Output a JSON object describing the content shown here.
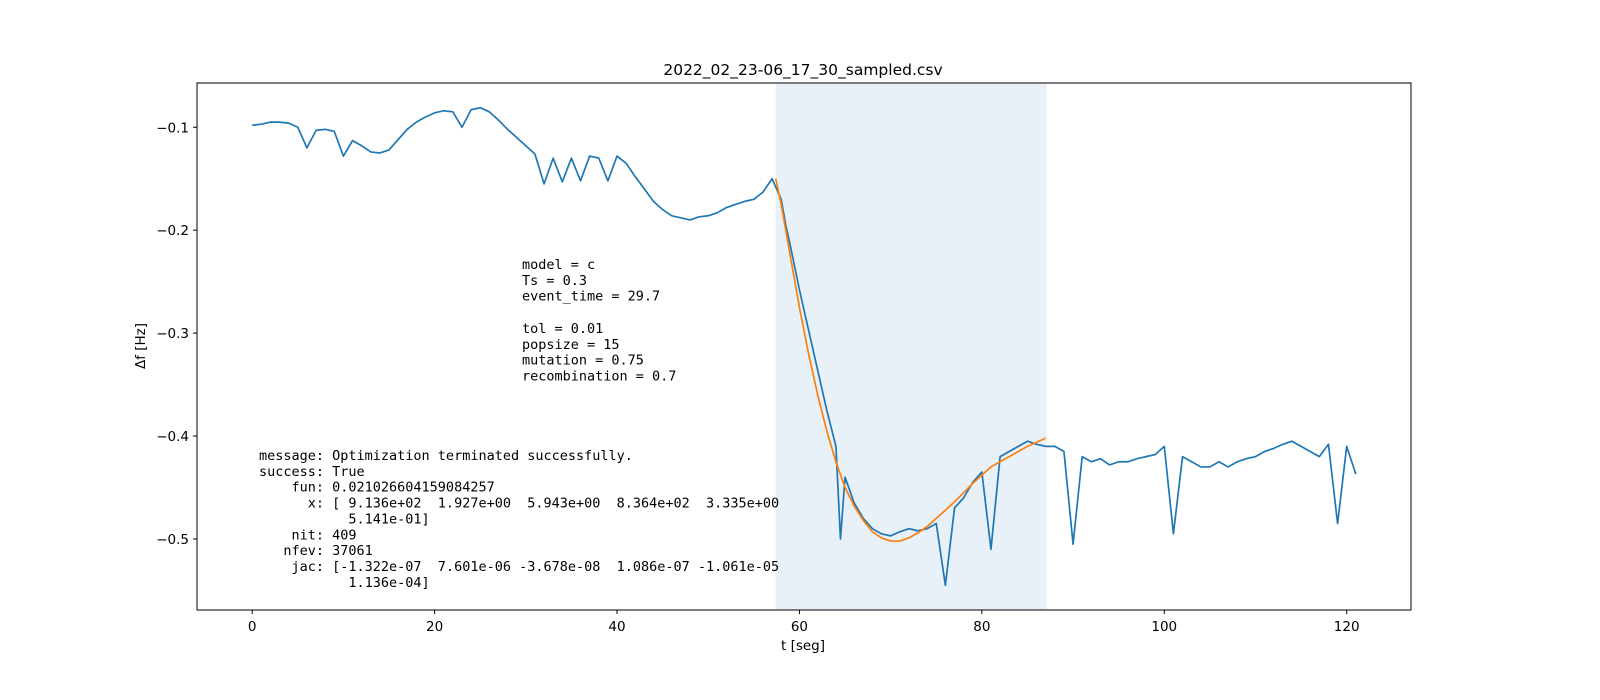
{
  "chart_data": {
    "type": "line",
    "title": "2022_02_23-06_17_30_sampled.csv",
    "xlabel": "t [seg]",
    "ylabel": "Δf [Hz]",
    "xlim": [
      -6.05,
      127.05
    ],
    "ylim": [
      -0.569,
      -0.057
    ],
    "xticks": [
      0,
      20,
      40,
      60,
      80,
      100,
      120
    ],
    "yticks": [
      {
        "value": -0.5,
        "label": "−0.5"
      },
      {
        "value": -0.4,
        "label": "−0.4"
      },
      {
        "value": -0.3,
        "label": "−0.3"
      },
      {
        "value": -0.2,
        "label": "−0.2"
      },
      {
        "value": -0.1,
        "label": "−0.1"
      }
    ],
    "span": [
      57.4,
      87.1
    ],
    "span_color": "#e8f0f8",
    "series": [
      {
        "color": "#1f77b4",
        "x": [
          0,
          1,
          2,
          3,
          4,
          5,
          6,
          7,
          8,
          9,
          10,
          11,
          12,
          13,
          14,
          15,
          16,
          17,
          18,
          19,
          20,
          21,
          22,
          23,
          24,
          25,
          26,
          27,
          28,
          29,
          30,
          31,
          32,
          33,
          34,
          35,
          36,
          37,
          38,
          39,
          40,
          41,
          42,
          43,
          44,
          45,
          46,
          47,
          48,
          49,
          50,
          51,
          52,
          53,
          54,
          55,
          56,
          57,
          58,
          58.5,
          59,
          60,
          61,
          62,
          63,
          64,
          64.5,
          65,
          66,
          67,
          68,
          69,
          70,
          71,
          72,
          73,
          74,
          75,
          76,
          77,
          78,
          79,
          80,
          81,
          82,
          83,
          84,
          85,
          86,
          87,
          88,
          89,
          90,
          91,
          92,
          93,
          94,
          95,
          96,
          97,
          98,
          99,
          100,
          101,
          102,
          103,
          104,
          105,
          106,
          107,
          108,
          109,
          110,
          111,
          112,
          113,
          114,
          115,
          116,
          117,
          118,
          119,
          120,
          121
        ],
        "values": [
          -0.098,
          -0.097,
          -0.095,
          -0.095,
          -0.096,
          -0.1,
          -0.12,
          -0.103,
          -0.102,
          -0.104,
          -0.128,
          -0.113,
          -0.118,
          -0.124,
          -0.125,
          -0.122,
          -0.112,
          -0.102,
          -0.095,
          -0.09,
          -0.086,
          -0.084,
          -0.085,
          -0.1,
          -0.083,
          -0.081,
          -0.085,
          -0.093,
          -0.102,
          -0.11,
          -0.118,
          -0.126,
          -0.155,
          -0.13,
          -0.153,
          -0.13,
          -0.152,
          -0.128,
          -0.13,
          -0.152,
          -0.128,
          -0.135,
          -0.148,
          -0.16,
          -0.172,
          -0.18,
          -0.186,
          -0.188,
          -0.19,
          -0.187,
          -0.186,
          -0.183,
          -0.178,
          -0.175,
          -0.172,
          -0.17,
          -0.163,
          -0.15,
          -0.17,
          -0.195,
          -0.215,
          -0.258,
          -0.297,
          -0.336,
          -0.375,
          -0.41,
          -0.5,
          -0.44,
          -0.465,
          -0.48,
          -0.49,
          -0.495,
          -0.497,
          -0.493,
          -0.49,
          -0.492,
          -0.49,
          -0.485,
          -0.545,
          -0.47,
          -0.46,
          -0.445,
          -0.435,
          -0.51,
          -0.42,
          -0.415,
          -0.41,
          -0.405,
          -0.408,
          -0.41,
          -0.41,
          -0.415,
          -0.505,
          -0.42,
          -0.425,
          -0.422,
          -0.428,
          -0.425,
          -0.425,
          -0.422,
          -0.42,
          -0.418,
          -0.41,
          -0.495,
          -0.42,
          -0.425,
          -0.43,
          -0.43,
          -0.425,
          -0.43,
          -0.425,
          -0.422,
          -0.42,
          -0.415,
          -0.412,
          -0.408,
          -0.405,
          -0.41,
          -0.415,
          -0.42,
          -0.408,
          -0.485,
          -0.41,
          -0.437
        ]
      },
      {
        "color": "#ff7f0e",
        "x": [
          57.4,
          58,
          59,
          60,
          61,
          62,
          63,
          64,
          65,
          66,
          67,
          68,
          69,
          70,
          71,
          72,
          73,
          74,
          75,
          76,
          77,
          78,
          79,
          80,
          81,
          82,
          83,
          84,
          85,
          86,
          87
        ],
        "values": [
          -0.15,
          -0.175,
          -0.225,
          -0.275,
          -0.32,
          -0.36,
          -0.395,
          -0.425,
          -0.45,
          -0.468,
          -0.482,
          -0.493,
          -0.499,
          -0.502,
          -0.502,
          -0.499,
          -0.494,
          -0.488,
          -0.48,
          -0.472,
          -0.464,
          -0.455,
          -0.446,
          -0.438,
          -0.43,
          -0.425,
          -0.42,
          -0.415,
          -0.41,
          -0.406,
          -0.402
        ]
      }
    ],
    "annotations": [
      {
        "lines": [
          "model = c",
          "Ts = 0.3",
          "event_time = 29.7"
        ]
      },
      {
        "lines": [
          "tol = 0.01",
          "popsize = 15",
          "mutation = 0.75",
          "recombination = 0.7"
        ]
      },
      {
        "lines": [
          "message: Optimization terminated successfully.",
          "success: True",
          "    fun: 0.021026604159084257",
          "      x: [ 9.136e+02  1.927e+00  5.943e+00  8.364e+02  3.335e+00",
          "           5.141e-01]",
          "    nit: 409",
          "   nfev: 37061",
          "    jac: [-1.322e-07  7.601e-06 -3.678e-08  1.086e-07 -1.061e-05",
          "           1.136e-04]"
        ]
      }
    ]
  }
}
